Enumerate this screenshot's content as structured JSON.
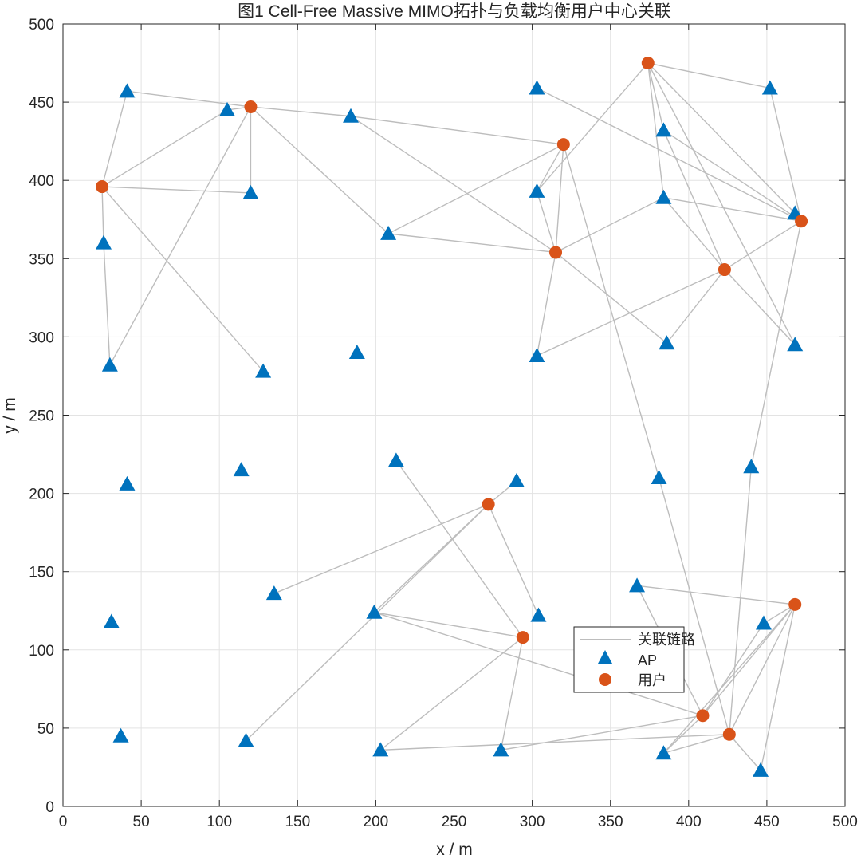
{
  "chart_data": {
    "type": "scatter",
    "title": "图1 Cell-Free Massive MIMO拓扑与负载均衡用户中心关联",
    "xlabel": "x / m",
    "ylabel": "y / m",
    "xlim": [
      0,
      500
    ],
    "ylim": [
      0,
      500
    ],
    "xticks": [
      0,
      50,
      100,
      150,
      200,
      250,
      300,
      350,
      400,
      450,
      500
    ],
    "yticks": [
      0,
      50,
      100,
      150,
      200,
      250,
      300,
      350,
      400,
      450,
      500
    ],
    "grid": true,
    "legend_position": "bottom-right",
    "legend": [
      {
        "label": "关联链路",
        "kind": "line",
        "color": "#bdbdbd"
      },
      {
        "label": "AP",
        "kind": "triangle",
        "color": "#0072BD"
      },
      {
        "label": "用户",
        "kind": "circle",
        "color": "#D95319"
      }
    ],
    "colors": {
      "ap": "#0072BD",
      "user": "#D95319",
      "link": "#bdbdbd",
      "grid": "#e3e3e3",
      "axis": "#262626"
    },
    "aps": [
      [
        41,
        457
      ],
      [
        105,
        445
      ],
      [
        120,
        392
      ],
      [
        184,
        441
      ],
      [
        26,
        360
      ],
      [
        30,
        282
      ],
      [
        128,
        278
      ],
      [
        188,
        290
      ],
      [
        208,
        366
      ],
      [
        303,
        459
      ],
      [
        303,
        393
      ],
      [
        303,
        288
      ],
      [
        384,
        432
      ],
      [
        384,
        389
      ],
      [
        452,
        459
      ],
      [
        468,
        379
      ],
      [
        386,
        296
      ],
      [
        468,
        295
      ],
      [
        41,
        206
      ],
      [
        114,
        215
      ],
      [
        213,
        221
      ],
      [
        290,
        208
      ],
      [
        381,
        210
      ],
      [
        440,
        217
      ],
      [
        31,
        118
      ],
      [
        135,
        136
      ],
      [
        199,
        124
      ],
      [
        304,
        122
      ],
      [
        367,
        141
      ],
      [
        37,
        45
      ],
      [
        117,
        42
      ],
      [
        203,
        36
      ],
      [
        280,
        36
      ],
      [
        384,
        34
      ],
      [
        448,
        117
      ],
      [
        446,
        23
      ]
    ],
    "users": [
      [
        120,
        447
      ],
      [
        25,
        396
      ],
      [
        320,
        423
      ],
      [
        315,
        354
      ],
      [
        374,
        475
      ],
      [
        472,
        374
      ],
      [
        423,
        343
      ],
      [
        272,
        193
      ],
      [
        294,
        108
      ],
      [
        468,
        129
      ],
      [
        409,
        58
      ],
      [
        426,
        46
      ]
    ],
    "links": [
      [
        [
          120,
          447
        ],
        [
          41,
          457
        ]
      ],
      [
        [
          120,
          447
        ],
        [
          105,
          445
        ]
      ],
      [
        [
          120,
          447
        ],
        [
          120,
          392
        ]
      ],
      [
        [
          120,
          447
        ],
        [
          184,
          441
        ]
      ],
      [
        [
          120,
          447
        ],
        [
          208,
          366
        ]
      ],
      [
        [
          120,
          447
        ],
        [
          30,
          282
        ]
      ],
      [
        [
          25,
          396
        ],
        [
          41,
          457
        ]
      ],
      [
        [
          25,
          396
        ],
        [
          105,
          445
        ]
      ],
      [
        [
          25,
          396
        ],
        [
          120,
          392
        ]
      ],
      [
        [
          25,
          396
        ],
        [
          26,
          360
        ]
      ],
      [
        [
          25,
          396
        ],
        [
          128,
          278
        ]
      ],
      [
        [
          26,
          360
        ],
        [
          30,
          282
        ]
      ],
      [
        [
          320,
          423
        ],
        [
          184,
          441
        ]
      ],
      [
        [
          320,
          423
        ],
        [
          208,
          366
        ]
      ],
      [
        [
          320,
          423
        ],
        [
          303,
          393
        ]
      ],
      [
        [
          320,
          423
        ],
        [
          315,
          354
        ]
      ],
      [
        [
          320,
          423
        ],
        [
          381,
          210
        ]
      ],
      [
        [
          315,
          354
        ],
        [
          184,
          441
        ]
      ],
      [
        [
          315,
          354
        ],
        [
          208,
          366
        ]
      ],
      [
        [
          315,
          354
        ],
        [
          303,
          393
        ]
      ],
      [
        [
          315,
          354
        ],
        [
          303,
          288
        ]
      ],
      [
        [
          315,
          354
        ],
        [
          384,
          389
        ]
      ],
      [
        [
          315,
          354
        ],
        [
          386,
          296
        ]
      ],
      [
        [
          374,
          475
        ],
        [
          452,
          459
        ]
      ],
      [
        [
          374,
          475
        ],
        [
          303,
          393
        ]
      ],
      [
        [
          374,
          475
        ],
        [
          384,
          432
        ]
      ],
      [
        [
          374,
          475
        ],
        [
          384,
          389
        ]
      ],
      [
        [
          374,
          475
        ],
        [
          468,
          379
        ]
      ],
      [
        [
          374,
          475
        ],
        [
          468,
          295
        ]
      ],
      [
        [
          472,
          374
        ],
        [
          303,
          459
        ]
      ],
      [
        [
          472,
          374
        ],
        [
          384,
          389
        ]
      ],
      [
        [
          472,
          374
        ],
        [
          468,
          379
        ]
      ],
      [
        [
          472,
          374
        ],
        [
          452,
          459
        ]
      ],
      [
        [
          472,
          374
        ],
        [
          384,
          432
        ]
      ],
      [
        [
          472,
          374
        ],
        [
          440,
          217
        ]
      ],
      [
        [
          423,
          343
        ],
        [
          384,
          432
        ]
      ],
      [
        [
          423,
          343
        ],
        [
          472,
          374
        ]
      ],
      [
        [
          423,
          343
        ],
        [
          303,
          288
        ]
      ],
      [
        [
          423,
          343
        ],
        [
          386,
          296
        ]
      ],
      [
        [
          423,
          343
        ],
        [
          384,
          389
        ]
      ],
      [
        [
          423,
          343
        ],
        [
          468,
          295
        ]
      ],
      [
        [
          272,
          193
        ],
        [
          290,
          208
        ]
      ],
      [
        [
          272,
          193
        ],
        [
          135,
          136
        ]
      ],
      [
        [
          272,
          193
        ],
        [
          199,
          124
        ]
      ],
      [
        [
          272,
          193
        ],
        [
          304,
          122
        ]
      ],
      [
        [
          272,
          193
        ],
        [
          117,
          42
        ]
      ],
      [
        [
          294,
          108
        ],
        [
          213,
          221
        ]
      ],
      [
        [
          294,
          108
        ],
        [
          199,
          124
        ]
      ],
      [
        [
          294,
          108
        ],
        [
          203,
          36
        ]
      ],
      [
        [
          294,
          108
        ],
        [
          280,
          36
        ]
      ],
      [
        [
          468,
          129
        ],
        [
          367,
          141
        ]
      ],
      [
        [
          468,
          129
        ],
        [
          448,
          117
        ]
      ],
      [
        [
          468,
          129
        ],
        [
          384,
          34
        ]
      ],
      [
        [
          468,
          129
        ],
        [
          446,
          23
        ]
      ],
      [
        [
          468,
          129
        ],
        [
          426,
          46
        ]
      ],
      [
        [
          468,
          129
        ],
        [
          409,
          58
        ]
      ],
      [
        [
          409,
          58
        ],
        [
          199,
          124
        ]
      ],
      [
        [
          409,
          58
        ],
        [
          280,
          36
        ]
      ],
      [
        [
          409,
          58
        ],
        [
          367,
          141
        ]
      ],
      [
        [
          409,
          58
        ],
        [
          384,
          34
        ]
      ],
      [
        [
          409,
          58
        ],
        [
          448,
          117
        ]
      ],
      [
        [
          426,
          46
        ],
        [
          203,
          36
        ]
      ],
      [
        [
          426,
          46
        ],
        [
          381,
          210
        ]
      ],
      [
        [
          426,
          46
        ],
        [
          440,
          217
        ]
      ],
      [
        [
          426,
          46
        ],
        [
          446,
          23
        ]
      ],
      [
        [
          426,
          46
        ],
        [
          384,
          34
        ]
      ]
    ]
  }
}
